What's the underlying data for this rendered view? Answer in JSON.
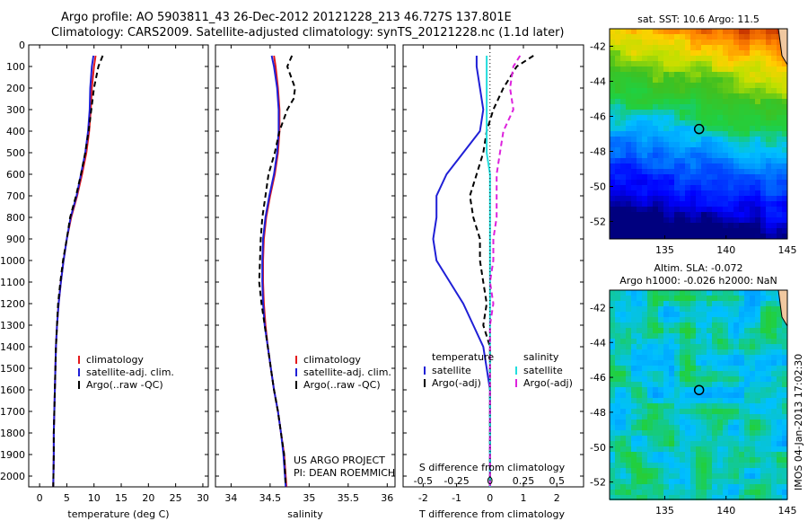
{
  "header": {
    "line1": "Argo profile: AO 5903811_43 26-Dec-2012 20121228_213 46.727S 137.801E",
    "line2": "Climatology: CARS2009. Satellite-adjusted climatology: synTS_20121228.nc (1.1d later)"
  },
  "colors": {
    "climatology": "#e41a1c",
    "satellite": "#1f1fd6",
    "argo": "#000000",
    "sat_salinity": "#22dddd",
    "argo_salinity": "#dd22dd"
  },
  "project_credit": {
    "line1": "US ARGO PROJECT",
    "line2": "PI: DEAN ROEMMICH"
  },
  "imos_stamp": "IMOS 04-Jan-2013 17:02:30",
  "chart_data": [
    {
      "type": "line",
      "name": "temperature-profile",
      "xlabel": "temperature (deg C)",
      "ylabel": "",
      "xlim": [
        -2,
        31
      ],
      "ylim": [
        2050,
        0
      ],
      "xticks": [
        0,
        5,
        10,
        15,
        20,
        25,
        30
      ],
      "yticks": [
        0,
        100,
        200,
        300,
        400,
        500,
        600,
        700,
        800,
        900,
        1000,
        1100,
        1200,
        1300,
        1400,
        1500,
        1600,
        1700,
        1800,
        1900,
        2000
      ],
      "legend": [
        "climatology",
        "satellite-adj. clim.",
        "Argo(..raw -QC)"
      ],
      "series": [
        {
          "name": "climatology",
          "color": "#e41a1c",
          "dash": "",
          "points": [
            [
              10.3,
              50
            ],
            [
              10.0,
              100
            ],
            [
              9.6,
              200
            ],
            [
              9.4,
              300
            ],
            [
              9.1,
              400
            ],
            [
              8.6,
              500
            ],
            [
              7.8,
              600
            ],
            [
              6.9,
              700
            ],
            [
              5.8,
              800
            ],
            [
              5.0,
              900
            ],
            [
              4.4,
              1000
            ],
            [
              3.9,
              1100
            ],
            [
              3.5,
              1200
            ],
            [
              3.2,
              1300
            ],
            [
              3.0,
              1400
            ],
            [
              2.9,
              1500
            ],
            [
              2.8,
              1600
            ],
            [
              2.7,
              1700
            ],
            [
              2.6,
              1800
            ],
            [
              2.6,
              1900
            ],
            [
              2.5,
              2050
            ]
          ]
        },
        {
          "name": "satellite-adj. clim.",
          "color": "#1f1fd6",
          "dash": "",
          "points": [
            [
              9.9,
              50
            ],
            [
              9.6,
              100
            ],
            [
              9.3,
              200
            ],
            [
              9.2,
              300
            ],
            [
              8.9,
              400
            ],
            [
              8.4,
              500
            ],
            [
              7.6,
              600
            ],
            [
              6.8,
              700
            ],
            [
              5.7,
              800
            ],
            [
              5.0,
              900
            ],
            [
              4.4,
              1000
            ],
            [
              3.9,
              1100
            ],
            [
              3.5,
              1200
            ],
            [
              3.2,
              1300
            ],
            [
              3.0,
              1400
            ],
            [
              2.9,
              1500
            ],
            [
              2.8,
              1600
            ],
            [
              2.7,
              1700
            ],
            [
              2.6,
              1800
            ],
            [
              2.6,
              1900
            ],
            [
              2.5,
              2050
            ]
          ]
        },
        {
          "name": "Argo(..raw -QC)",
          "color": "#000000",
          "dash": "6,4",
          "points": [
            [
              11.6,
              50
            ],
            [
              10.8,
              100
            ],
            [
              10.0,
              200
            ],
            [
              9.5,
              300
            ],
            [
              9.0,
              400
            ],
            [
              8.4,
              500
            ],
            [
              7.6,
              600
            ],
            [
              6.7,
              700
            ],
            [
              5.6,
              800
            ],
            [
              5.0,
              900
            ],
            [
              4.3,
              1000
            ],
            [
              3.8,
              1100
            ],
            [
              3.4,
              1200
            ],
            [
              3.2,
              1300
            ],
            [
              3.0,
              1400
            ],
            [
              2.9,
              1500
            ],
            [
              2.8,
              1600
            ],
            [
              2.7,
              1700
            ],
            [
              2.6,
              1800
            ],
            [
              2.6,
              1900
            ],
            [
              2.5,
              2050
            ]
          ]
        }
      ]
    },
    {
      "type": "line",
      "name": "salinity-profile",
      "xlabel": "salinity",
      "ylabel": "",
      "xlim": [
        33.8,
        36.1
      ],
      "ylim": [
        2050,
        0
      ],
      "xticks": [
        34,
        34.5,
        35,
        35.5,
        36
      ],
      "yticks": [],
      "legend": [
        "climatology",
        "satellite-adj. clim.",
        "Argo(..raw -QC)"
      ],
      "series": [
        {
          "name": "climatology",
          "color": "#e41a1c",
          "dash": "",
          "points": [
            [
              34.55,
              50
            ],
            [
              34.57,
              100
            ],
            [
              34.6,
              200
            ],
            [
              34.62,
              300
            ],
            [
              34.62,
              400
            ],
            [
              34.6,
              500
            ],
            [
              34.56,
              600
            ],
            [
              34.5,
              700
            ],
            [
              34.45,
              800
            ],
            [
              34.42,
              900
            ],
            [
              34.41,
              1000
            ],
            [
              34.41,
              1100
            ],
            [
              34.42,
              1200
            ],
            [
              34.44,
              1300
            ],
            [
              34.47,
              1400
            ],
            [
              34.51,
              1500
            ],
            [
              34.55,
              1600
            ],
            [
              34.6,
              1700
            ],
            [
              34.64,
              1800
            ],
            [
              34.68,
              1900
            ],
            [
              34.71,
              2050
            ]
          ]
        },
        {
          "name": "satellite-adj. clim.",
          "color": "#1f1fd6",
          "dash": "",
          "points": [
            [
              34.52,
              50
            ],
            [
              34.55,
              100
            ],
            [
              34.59,
              200
            ],
            [
              34.61,
              300
            ],
            [
              34.61,
              400
            ],
            [
              34.59,
              500
            ],
            [
              34.55,
              600
            ],
            [
              34.49,
              700
            ],
            [
              34.44,
              800
            ],
            [
              34.41,
              900
            ],
            [
              34.4,
              1000
            ],
            [
              34.4,
              1100
            ],
            [
              34.41,
              1200
            ],
            [
              34.43,
              1300
            ],
            [
              34.47,
              1400
            ],
            [
              34.51,
              1500
            ],
            [
              34.55,
              1600
            ],
            [
              34.6,
              1700
            ],
            [
              34.64,
              1800
            ],
            [
              34.67,
              1900
            ],
            [
              34.7,
              2050
            ]
          ]
        },
        {
          "name": "Argo(..raw -QC)",
          "color": "#000000",
          "dash": "6,4",
          "points": [
            [
              34.78,
              50
            ],
            [
              34.72,
              100
            ],
            [
              34.82,
              200
            ],
            [
              34.8,
              250
            ],
            [
              34.72,
              300
            ],
            [
              34.62,
              400
            ],
            [
              34.56,
              500
            ],
            [
              34.48,
              600
            ],
            [
              34.44,
              700
            ],
            [
              34.4,
              800
            ],
            [
              34.38,
              900
            ],
            [
              34.37,
              1000
            ],
            [
              34.36,
              1100
            ],
            [
              34.39,
              1200
            ],
            [
              34.43,
              1300
            ],
            [
              34.47,
              1400
            ],
            [
              34.51,
              1500
            ],
            [
              34.55,
              1600
            ],
            [
              34.6,
              1700
            ],
            [
              34.64,
              1800
            ],
            [
              34.68,
              1900
            ],
            [
              34.7,
              2050
            ]
          ]
        }
      ]
    },
    {
      "type": "line",
      "name": "difference-from-climatology",
      "xlabel": "T difference from climatology",
      "xlabel_top": "S difference from climatology",
      "xlim": [
        -2.6,
        2.8
      ],
      "ylim": [
        2050,
        0
      ],
      "xticks": [
        -2,
        -1,
        0,
        1,
        2
      ],
      "xticks_s": [
        "-0.5",
        "-0.25",
        "0",
        "0.25",
        "0.5"
      ],
      "legend_title_left": "temperature",
      "legend_title_right": "salinity",
      "legend": [
        "satellite",
        "Argo(-adj)",
        "satellite",
        "Argo(-adj)"
      ],
      "series": [
        {
          "name": "temperature satellite",
          "color": "#1f1fd6",
          "dash": "",
          "points": [
            [
              -0.4,
              50
            ],
            [
              -0.4,
              100
            ],
            [
              -0.3,
              200
            ],
            [
              -0.2,
              300
            ],
            [
              -0.3,
              400
            ],
            [
              -0.8,
              500
            ],
            [
              -1.3,
              600
            ],
            [
              -1.6,
              700
            ],
            [
              -1.6,
              800
            ],
            [
              -1.7,
              900
            ],
            [
              -1.6,
              1000
            ],
            [
              -1.2,
              1100
            ],
            [
              -0.8,
              1200
            ],
            [
              -0.5,
              1300
            ],
            [
              -0.2,
              1400
            ],
            [
              -0.1,
              1500
            ],
            [
              0.0,
              1600
            ],
            [
              0.0,
              1800
            ],
            [
              0.0,
              2050
            ]
          ]
        },
        {
          "name": "temperature Argo(-adj)",
          "color": "#000000",
          "dash": "6,4",
          "points": [
            [
              1.3,
              50
            ],
            [
              0.8,
              100
            ],
            [
              0.4,
              200
            ],
            [
              0.1,
              300
            ],
            [
              -0.1,
              400
            ],
            [
              -0.2,
              500
            ],
            [
              -0.4,
              600
            ],
            [
              -0.6,
              700
            ],
            [
              -0.5,
              800
            ],
            [
              -0.3,
              900
            ],
            [
              -0.3,
              1000
            ],
            [
              -0.2,
              1100
            ],
            [
              -0.1,
              1200
            ],
            [
              -0.2,
              1300
            ],
            [
              0.0,
              1400
            ],
            [
              0.0,
              1600
            ],
            [
              0.0,
              2050
            ]
          ]
        },
        {
          "name": "salinity satellite",
          "color": "#22dddd",
          "dash": "",
          "points": [
            [
              -0.1,
              50
            ],
            [
              -0.1,
              100
            ],
            [
              -0.1,
              200
            ],
            [
              -0.1,
              300
            ],
            [
              -0.1,
              400
            ],
            [
              -0.1,
              500
            ],
            [
              0.0,
              600
            ],
            [
              0.0,
              700
            ],
            [
              0.0,
              800
            ],
            [
              0.0,
              900
            ],
            [
              0.0,
              1000
            ],
            [
              0.0,
              1200
            ],
            [
              0.0,
              1400
            ],
            [
              0.0,
              2050
            ]
          ]
        },
        {
          "name": "salinity Argo(-adj)",
          "color": "#dd22dd",
          "dash": "6,4",
          "points": [
            [
              0.9,
              50
            ],
            [
              0.7,
              100
            ],
            [
              0.6,
              200
            ],
            [
              0.7,
              300
            ],
            [
              0.4,
              400
            ],
            [
              0.3,
              500
            ],
            [
              0.2,
              600
            ],
            [
              0.2,
              700
            ],
            [
              0.2,
              800
            ],
            [
              0.1,
              900
            ],
            [
              0.1,
              1000
            ],
            [
              0.0,
              1100
            ],
            [
              0.1,
              1200
            ],
            [
              0.0,
              1300
            ],
            [
              0.0,
              1500
            ],
            [
              0.0,
              2050
            ]
          ]
        }
      ]
    },
    {
      "type": "heatmap",
      "name": "sst-map",
      "title": "sat. SST: 10.6  Argo: 11.5",
      "xlim": [
        130.5,
        145
      ],
      "ylim": [
        -53,
        -41
      ],
      "xticks": [
        135,
        140,
        145
      ],
      "yticks": [
        -42,
        -44,
        -46,
        -48,
        -50,
        -52
      ],
      "marker": {
        "lon": 137.8,
        "lat": -46.727
      }
    },
    {
      "type": "heatmap",
      "name": "sla-map",
      "title": "Altim. SLA: -0.072",
      "subtitle": "Argo h1000: -0.026  h2000: NaN",
      "xlim": [
        130.5,
        145
      ],
      "ylim": [
        -53,
        -41
      ],
      "xticks": [
        135,
        140,
        145
      ],
      "yticks": [
        -42,
        -44,
        -46,
        -48,
        -50,
        -52
      ],
      "marker": {
        "lon": 137.8,
        "lat": -46.727
      }
    }
  ]
}
